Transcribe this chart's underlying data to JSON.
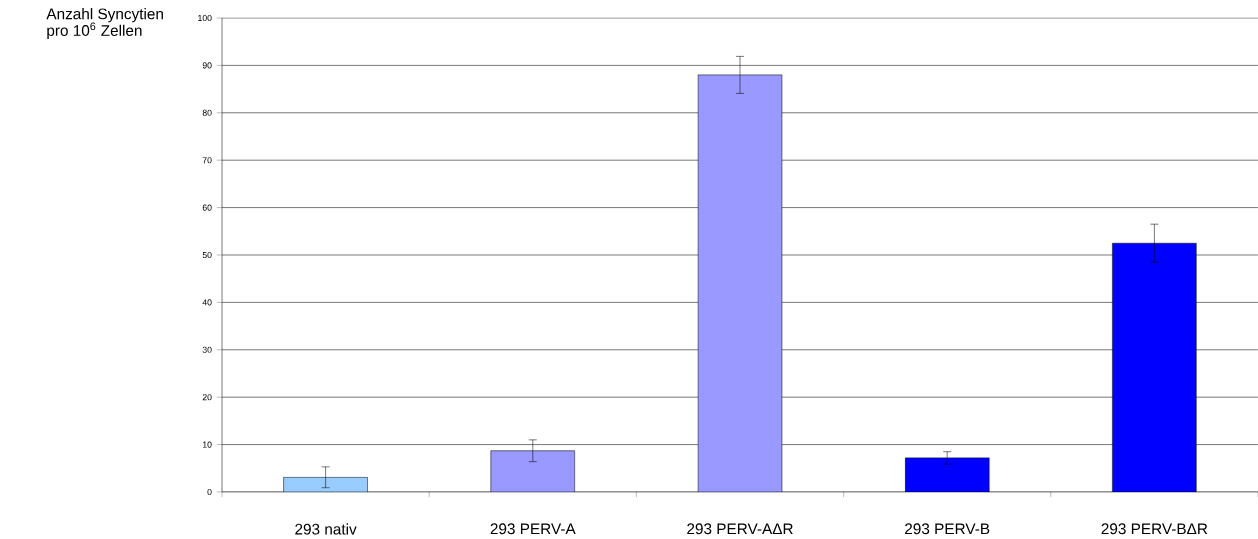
{
  "chart_data": {
    "type": "bar",
    "ylabel": "Anzahl Syncytien\npro 10$^{6}$ Zellen",
    "categories": [
      "293 nativ",
      "293 PERV-A",
      "293 PERV-AΔR",
      "293 PERV-B",
      "293 PERV-BΔR"
    ],
    "values": [
      3.1,
      8.7,
      88.0,
      7.2,
      52.5
    ],
    "errors": [
      2.2,
      2.3,
      3.9,
      1.3,
      4.0
    ],
    "colors": [
      "#99ccff",
      "#9999ff",
      "#9999ff",
      "#0000ff",
      "#0000ff"
    ],
    "ylim": [
      0,
      100
    ],
    "yticks": [
      0,
      10,
      20,
      30,
      40,
      50,
      60,
      70,
      80,
      90,
      100
    ],
    "grid": "y"
  }
}
